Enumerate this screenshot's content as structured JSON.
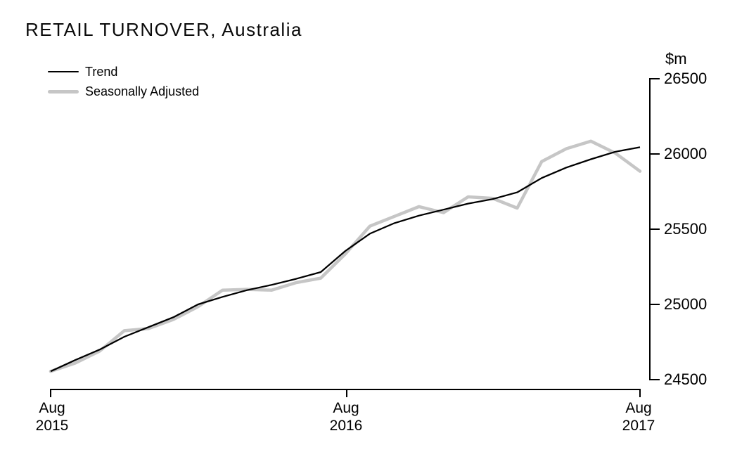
{
  "title": "RETAIL TURNOVER, Australia",
  "legend": [
    {
      "label": "Trend",
      "color": "#000000"
    },
    {
      "label": "Seasonally Adjusted",
      "color": "#c6c6c6"
    }
  ],
  "y_axis": {
    "unit": "$m",
    "ticks": [
      "26500",
      "26000",
      "25500",
      "25000",
      "24500"
    ]
  },
  "x_axis": {
    "ticks": [
      {
        "month": "Aug",
        "year": "2015"
      },
      {
        "month": "Aug",
        "year": "2016"
      },
      {
        "month": "Aug",
        "year": "2017"
      }
    ]
  },
  "chart_data": {
    "type": "line",
    "title": "RETAIL TURNOVER, Australia",
    "ylabel": "$m",
    "xlabel": "",
    "ylim": [
      24500,
      26500
    ],
    "yticks": [
      24500,
      25000,
      25500,
      26000,
      26500
    ],
    "y_axis_side": "right",
    "grid": false,
    "legend_position": "top-left",
    "x": [
      "Aug 2015",
      "Sep 2015",
      "Oct 2015",
      "Nov 2015",
      "Dec 2015",
      "Jan 2016",
      "Feb 2016",
      "Mar 2016",
      "Apr 2016",
      "May 2016",
      "Jun 2016",
      "Jul 2016",
      "Aug 2016",
      "Sep 2016",
      "Oct 2016",
      "Nov 2016",
      "Dec 2016",
      "Jan 2017",
      "Feb 2017",
      "Mar 2017",
      "Apr 2017",
      "May 2017",
      "Jun 2017",
      "Jul 2017",
      "Aug 2017"
    ],
    "xtick_positions": [
      0,
      12,
      24
    ],
    "series": [
      {
        "name": "Trend",
        "color": "#000000",
        "values": [
          24555,
          24630,
          24700,
          24785,
          24850,
          24915,
          25000,
          25050,
          25095,
          25130,
          25170,
          25215,
          25355,
          25470,
          25540,
          25590,
          25630,
          25670,
          25700,
          25745,
          25840,
          25910,
          25965,
          26015,
          26045
        ]
      },
      {
        "name": "Seasonally Adjusted",
        "color": "#c6c6c6",
        "values": [
          24555,
          24610,
          24690,
          24825,
          24840,
          24900,
          24985,
          25095,
          25100,
          25095,
          25145,
          25175,
          25335,
          25520,
          25585,
          25650,
          25610,
          25715,
          25705,
          25640,
          25950,
          26035,
          26085,
          26005,
          25885
        ]
      }
    ]
  }
}
